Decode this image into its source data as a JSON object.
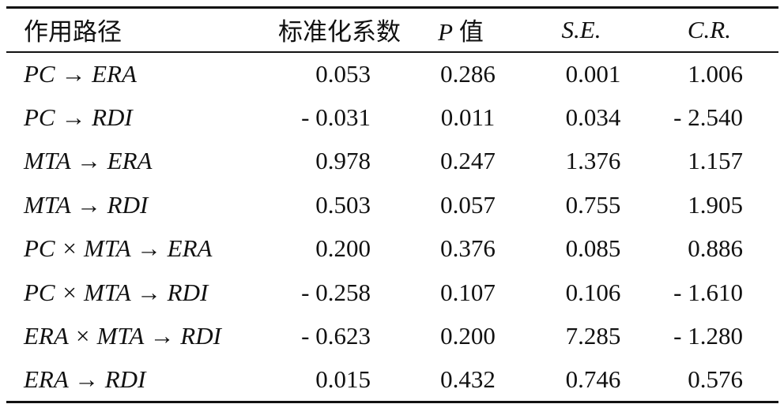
{
  "table": {
    "headers": {
      "path": "作用路径",
      "coef": "标准化系数",
      "p_prefix": "P",
      "p_suffix": " 值",
      "se": "S.E.",
      "cr": "C.R."
    },
    "rows": [
      {
        "path": "PC → ERA",
        "coef": "0.053",
        "p": "0.286",
        "se": "0.001",
        "cr": "1.006"
      },
      {
        "path": "PC → RDI",
        "coef": "- 0.031",
        "p": "0.011",
        "se": "0.034",
        "cr": "- 2.540"
      },
      {
        "path": "MTA → ERA",
        "coef": "0.978",
        "p": "0.247",
        "se": "1.376",
        "cr": "1.157"
      },
      {
        "path": "MTA → RDI",
        "coef": "0.503",
        "p": "0.057",
        "se": "0.755",
        "cr": "1.905"
      },
      {
        "path": "PC × MTA → ERA",
        "coef": "0.200",
        "p": "0.376",
        "se": "0.085",
        "cr": "0.886"
      },
      {
        "path": "PC × MTA → RDI",
        "coef": "- 0.258",
        "p": "0.107",
        "se": "0.106",
        "cr": "- 1.610"
      },
      {
        "path": "ERA × MTA → RDI",
        "coef": "- 0.623",
        "p": "0.200",
        "se": "7.285",
        "cr": "- 1.280"
      },
      {
        "path": "ERA → RDI",
        "coef": "0.015",
        "p": "0.432",
        "se": "0.746",
        "cr": "0.576"
      }
    ]
  }
}
